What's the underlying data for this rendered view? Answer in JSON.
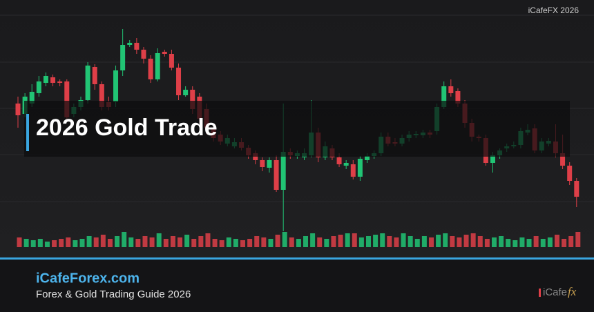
{
  "watermark": "iCafeFX 2026",
  "title": "2026 Gold Trade",
  "footer": {
    "brand": "iCafeForex.com",
    "tagline": "Forex & Gold Trading Guide 2026",
    "logo": {
      "text": "iCafe",
      "accent": "fx"
    }
  },
  "chart_data": {
    "type": "candlestick",
    "open": [
      160,
      145,
      160,
      175,
      190,
      198,
      192,
      192,
      145,
      155,
      165,
      213,
      188,
      162,
      162,
      208,
      245,
      248,
      238,
      225,
      195,
      235,
      232,
      212,
      172,
      180,
      170,
      152,
      125,
      115,
      102,
      98,
      104,
      96,
      88,
      78,
      67,
      78,
      35,
      90,
      84,
      82,
      85,
      118,
      82,
      95,
      82,
      70,
      72,
      54,
      78,
      84,
      88,
      112,
      104,
      102,
      110,
      114,
      114,
      118,
      120,
      155,
      185,
      178,
      160,
      132,
      112,
      110,
      74,
      85,
      95,
      98,
      100,
      118,
      124,
      92,
      102,
      105,
      88,
      70,
      48
    ],
    "high": [
      170,
      175,
      188,
      200,
      205,
      202,
      195,
      195,
      160,
      170,
      220,
      217,
      192,
      170,
      215,
      268,
      252,
      255,
      242,
      230,
      240,
      238,
      238,
      218,
      185,
      185,
      175,
      160,
      130,
      120,
      115,
      110,
      110,
      100,
      92,
      82,
      82,
      85,
      160,
      95,
      92,
      95,
      165,
      125,
      105,
      100,
      88,
      78,
      78,
      84,
      88,
      92,
      118,
      118,
      110,
      115,
      120,
      120,
      122,
      122,
      160,
      192,
      195,
      182,
      165,
      138,
      115,
      115,
      90,
      95,
      102,
      105,
      125,
      130,
      130,
      110,
      110,
      130,
      115,
      75,
      52
    ],
    "low": [
      125,
      140,
      155,
      170,
      185,
      185,
      185,
      135,
      140,
      150,
      160,
      180,
      150,
      150,
      155,
      200,
      242,
      232,
      218,
      190,
      192,
      228,
      208,
      165,
      170,
      145,
      132,
      115,
      105,
      100,
      98,
      95,
      92,
      80,
      72,
      62,
      60,
      32,
      -25,
      80,
      80,
      78,
      82,
      75,
      78,
      78,
      68,
      65,
      50,
      48,
      74,
      80,
      84,
      98,
      98,
      98,
      105,
      110,
      110,
      110,
      115,
      152,
      170,
      155,
      125,
      105,
      105,
      70,
      60,
      80,
      90,
      95,
      95,
      114,
      88,
      88,
      98,
      82,
      65,
      42,
      10
    ],
    "close": [
      143,
      170,
      177,
      192,
      200,
      190,
      190,
      140,
      155,
      165,
      215,
      188,
      155,
      155,
      208,
      245,
      248,
      238,
      225,
      195,
      233,
      232,
      212,
      172,
      180,
      152,
      138,
      125,
      110,
      105,
      110,
      104,
      96,
      85,
      78,
      68,
      78,
      35,
      90,
      85,
      88,
      88,
      118,
      82,
      98,
      82,
      72,
      74,
      54,
      80,
      84,
      88,
      112,
      102,
      102,
      110,
      115,
      116,
      118,
      115,
      155,
      185,
      175,
      160,
      132,
      112,
      110,
      74,
      85,
      92,
      98,
      100,
      120,
      122,
      92,
      105,
      106,
      88,
      70,
      48,
      25
    ],
    "volume": [
      14,
      12,
      10,
      12,
      8,
      10,
      12,
      14,
      10,
      12,
      16,
      14,
      18,
      12,
      16,
      22,
      14,
      12,
      16,
      14,
      20,
      12,
      16,
      14,
      18,
      12,
      16,
      20,
      12,
      10,
      14,
      12,
      10,
      12,
      16,
      14,
      12,
      18,
      22,
      14,
      12,
      16,
      20,
      14,
      12,
      16,
      18,
      20,
      20,
      14,
      16,
      18,
      20,
      16,
      14,
      20,
      16,
      12,
      16,
      14,
      18,
      20,
      16,
      14,
      18,
      20,
      16,
      12,
      14,
      16,
      12,
      10,
      14,
      12,
      16,
      12,
      14,
      18,
      12,
      16,
      22
    ],
    "ylim": [
      -40,
      310
    ],
    "volume_lim": [
      0,
      25
    ],
    "up_color": "#21c474",
    "down_color": "#de3f48"
  }
}
